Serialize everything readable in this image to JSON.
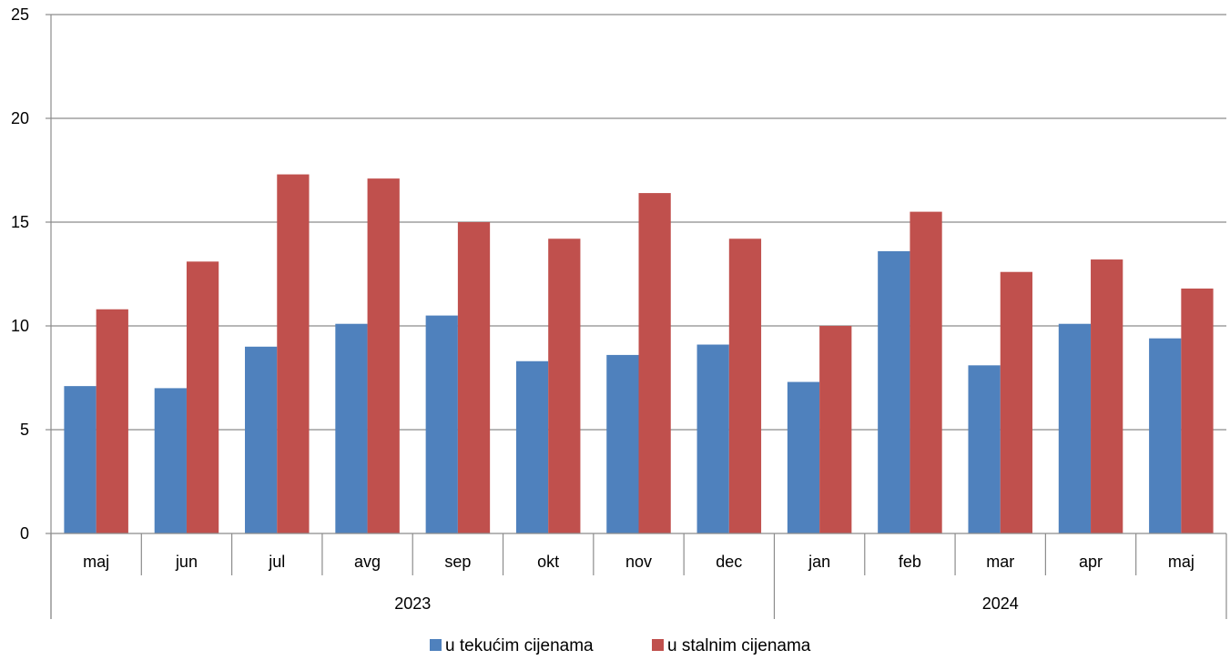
{
  "chart_data": {
    "type": "bar",
    "categories": [
      "maj",
      "jun",
      "jul",
      "avg",
      "sep",
      "okt",
      "nov",
      "dec",
      "jan",
      "feb",
      "mar",
      "apr",
      "maj"
    ],
    "groups": [
      {
        "label": "2023",
        "count": 8
      },
      {
        "label": "2024",
        "count": 5
      }
    ],
    "series": [
      {
        "name": "u tekućim cijenama",
        "color": "#4F81BD",
        "values": [
          7.1,
          7.0,
          9.0,
          10.1,
          10.5,
          8.3,
          8.6,
          9.1,
          7.3,
          13.6,
          8.1,
          10.1,
          9.4
        ]
      },
      {
        "name": "u stalnim cijenama",
        "color": "#C0504D",
        "values": [
          10.8,
          13.1,
          17.3,
          17.1,
          15.0,
          14.2,
          16.4,
          14.2,
          10.0,
          15.5,
          12.6,
          13.2,
          11.8
        ]
      }
    ],
    "ylim": [
      0,
      25
    ],
    "yticks": [
      0,
      5,
      10,
      15,
      20,
      25
    ],
    "grid": true,
    "legend_position": "bottom-center"
  }
}
